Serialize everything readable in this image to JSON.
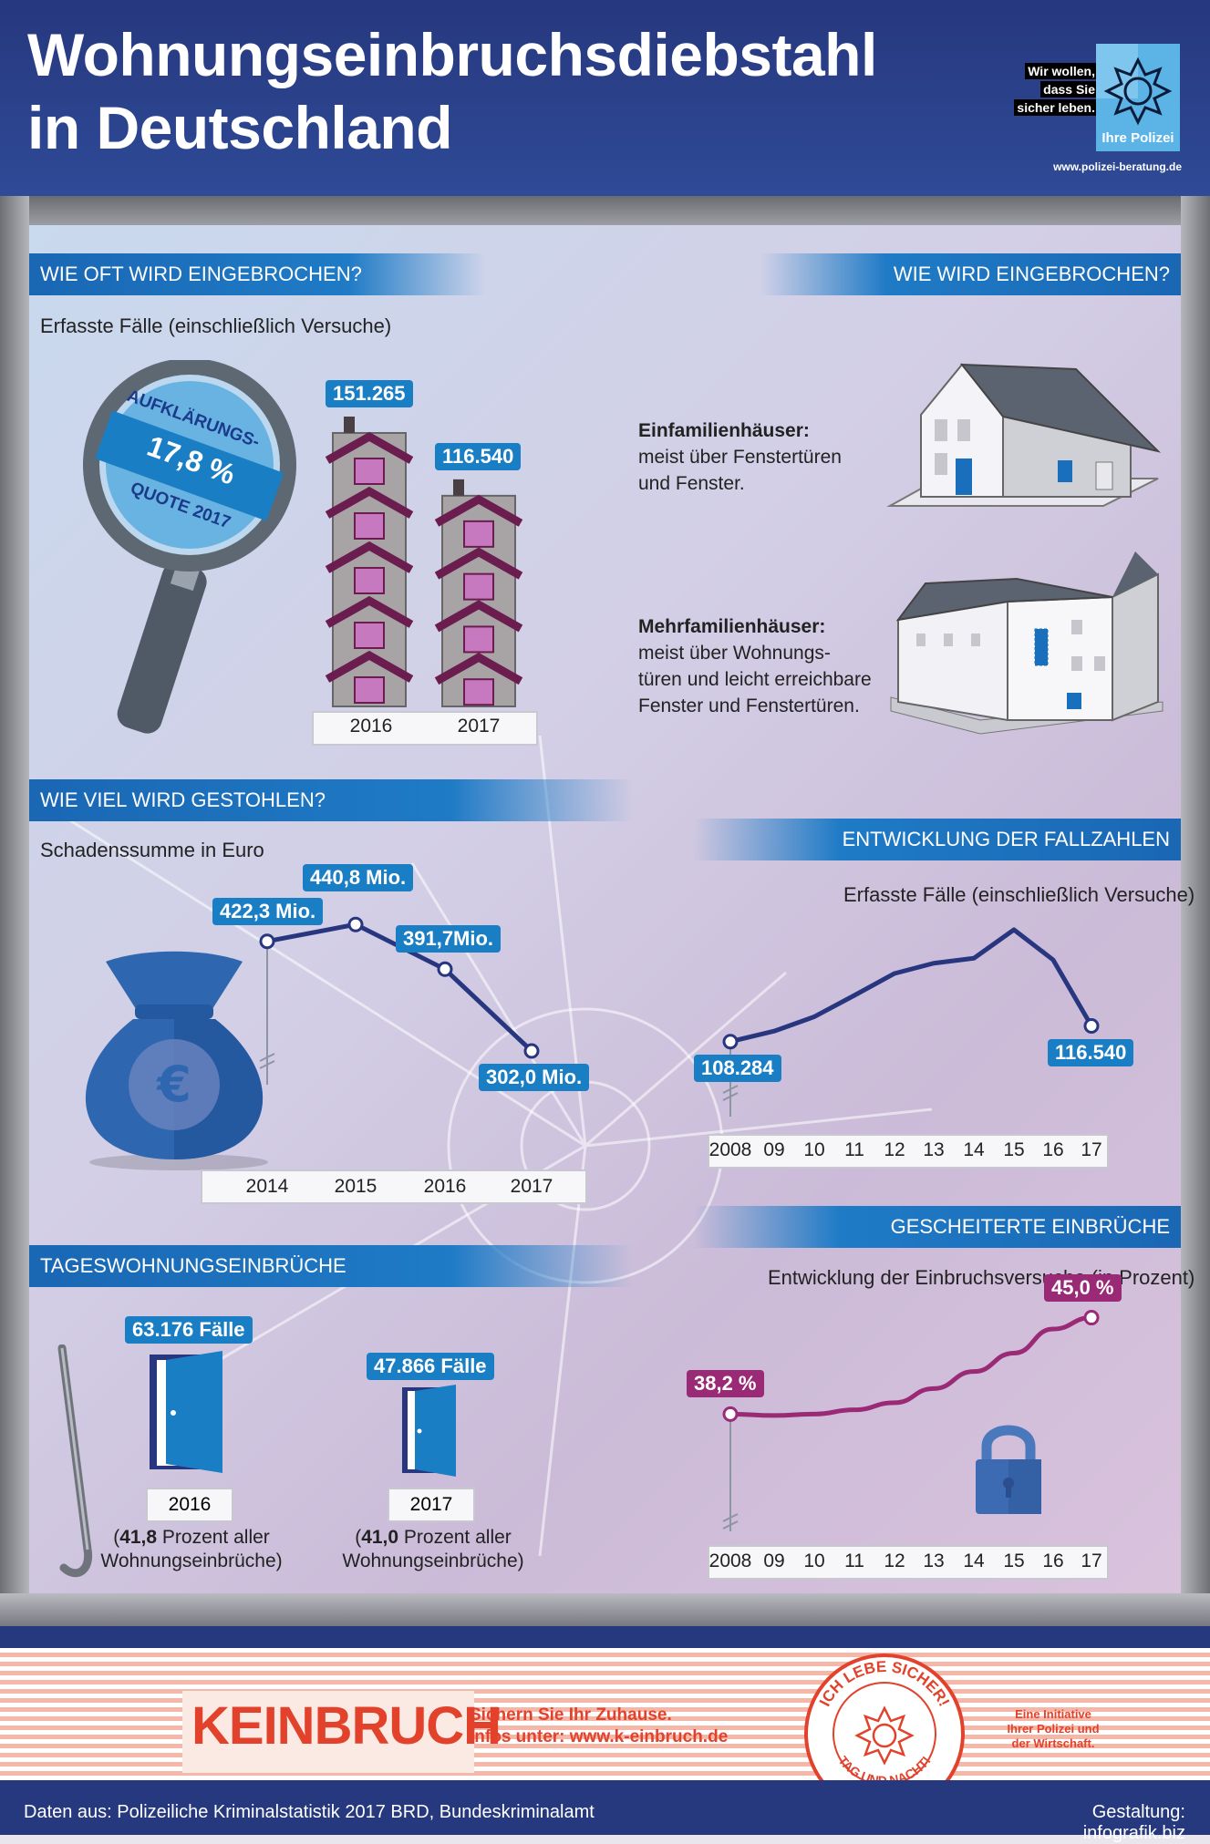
{
  "header": {
    "title_line1": "Wohnungseinbruchsdiebstahl",
    "title_line2": "in Deutschland",
    "logo_line1": "Wir wollen,",
    "logo_line2": "dass Sie",
    "logo_line3": "sicher leben.",
    "logo_brand": "Ihre Polizei",
    "url": "www.polizei-beratung.de"
  },
  "colors": {
    "accent_blue": "#1a7ec5",
    "navy": "#26387e",
    "magenta": "#9a2a76",
    "line_navy": "#27367e",
    "banner": "#1f7bc6"
  },
  "sections": {
    "how_often": {
      "title": "WIE OFT WIRD EINGEBROCHEN?",
      "subtitle": "Erfasste Fälle (einschließlich Versuche)",
      "clearance_line1": "AUFKLÄRUNGS-",
      "clearance_value": "17,8 %",
      "clearance_line2": "QUOTE 2017"
    },
    "how": {
      "title": "WIE WIRD EINGEBROCHEN?",
      "single_heading": "Einfamilienhäuser:",
      "single_text1": "meist über Fenstertüren",
      "single_text2": "und Fenster.",
      "multi_heading": "Mehrfamilienhäuser:",
      "multi_text1": "meist über Wohnungs-",
      "multi_text2": "türen und leicht erreichbare",
      "multi_text3": "Fenster und Fenstertüren."
    },
    "how_much": {
      "title": "WIE VIEL WIRD GESTOHLEN?",
      "subtitle": "Schadenssumme in Euro"
    },
    "development": {
      "title": "ENTWICKLUNG DER FALLZAHLEN",
      "subtitle": "Erfasste Fälle (einschließlich Versuche)"
    },
    "daytime": {
      "title": "TAGESWOHNUNGSEINBRÜCHE",
      "items": [
        {
          "badge": "63.176 Fälle",
          "year": "2016",
          "pct": "41,8",
          "note_pre": "(",
          "note_post": " Prozent aller",
          "note_line2": "Wohnungseinbrüche)"
        },
        {
          "badge": "47.866 Fälle",
          "year": "2017",
          "pct": "41,0",
          "note_pre": "(",
          "note_post": " Prozent aller",
          "note_line2": "Wohnungseinbrüche)"
        }
      ]
    },
    "failed": {
      "title": "GESCHEITERTE EINBRÜCHE",
      "subtitle": "Entwicklung der Einbruchsversuche (in Prozent)"
    }
  },
  "chart_data": [
    {
      "type": "bar",
      "categories": [
        "2016",
        "2017"
      ],
      "values": [
        151265,
        116540
      ],
      "value_labels": [
        "151.265",
        "116.540"
      ]
    },
    {
      "type": "line",
      "x": [
        "2014",
        "2015",
        "2016",
        "2017"
      ],
      "values": [
        422.3,
        440.8,
        391.7,
        302.0
      ],
      "value_labels": [
        "422,3 Mio.",
        "440,8 Mio.",
        "391,7Mio.",
        "302,0 Mio."
      ]
    },
    {
      "type": "line",
      "x": [
        "2008",
        "09",
        "10",
        "11",
        "12",
        "13",
        "14",
        "15",
        "16",
        "17"
      ],
      "values": [
        108284,
        113800,
        121347,
        132595,
        144117,
        149500,
        152123,
        167136,
        151265,
        116540
      ],
      "value_labels": [
        "108.284",
        "",
        "",
        "",
        "",
        "",
        "",
        "",
        "",
        "116.540"
      ]
    },
    {
      "type": "line",
      "x": [
        "2008",
        "09",
        "10",
        "11",
        "12",
        "13",
        "14",
        "15",
        "16",
        "17"
      ],
      "values": [
        38.2,
        38.1,
        38.2,
        38.5,
        39.0,
        40.0,
        41.2,
        42.5,
        44.2,
        45.0
      ],
      "value_labels": [
        "38,2 %",
        "",
        "",
        "",
        "",
        "",
        "",
        "",
        "",
        "45,0 %"
      ]
    }
  ],
  "footer": {
    "brand_kein": "KEIN",
    "brand_bruch": "BRUCH",
    "slogan1": "Sichern Sie Ihr Zuhause.",
    "slogan2": "Infos unter: www.k-einbruch.de",
    "seal_top": "ICH LEBE SICHER!",
    "seal_bottom": "TAG UND NACHT!",
    "initiative1": "Eine Initiative",
    "initiative2": "Ihrer Polizei und",
    "initiative3": "der Wirtschaft.",
    "source": "Daten aus: Polizeiliche Kriminalstatistik 2017 BRD, Bundeskriminalamt",
    "credit": "Gestaltung: infografik.biz"
  }
}
